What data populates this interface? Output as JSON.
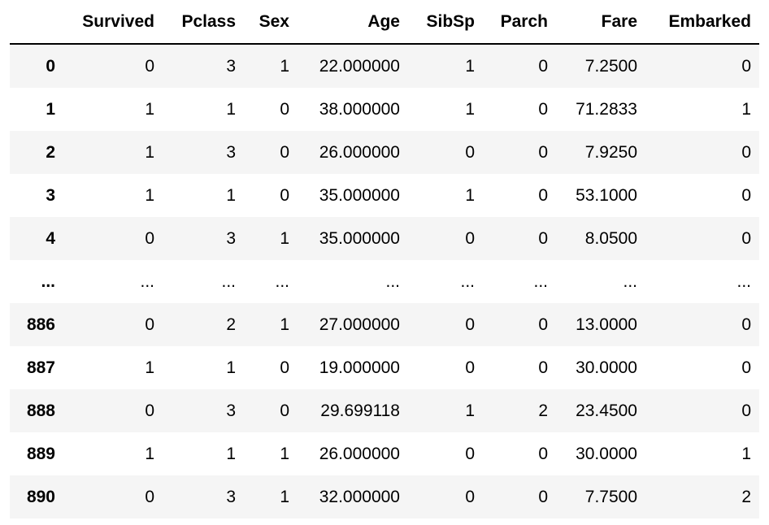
{
  "table": {
    "columns": [
      "",
      "Survived",
      "Pclass",
      "Sex",
      "Age",
      "SibSp",
      "Parch",
      "Fare",
      "Embarked"
    ],
    "rows": [
      {
        "index": "0",
        "cells": [
          "0",
          "3",
          "1",
          "22.000000",
          "1",
          "0",
          "7.2500",
          "0"
        ]
      },
      {
        "index": "1",
        "cells": [
          "1",
          "1",
          "0",
          "38.000000",
          "1",
          "0",
          "71.2833",
          "1"
        ]
      },
      {
        "index": "2",
        "cells": [
          "1",
          "3",
          "0",
          "26.000000",
          "0",
          "0",
          "7.9250",
          "0"
        ]
      },
      {
        "index": "3",
        "cells": [
          "1",
          "1",
          "0",
          "35.000000",
          "1",
          "0",
          "53.1000",
          "0"
        ]
      },
      {
        "index": "4",
        "cells": [
          "0",
          "3",
          "1",
          "35.000000",
          "0",
          "0",
          "8.0500",
          "0"
        ]
      },
      {
        "index": "...",
        "cells": [
          "...",
          "...",
          "...",
          "...",
          "...",
          "...",
          "...",
          "..."
        ]
      },
      {
        "index": "886",
        "cells": [
          "0",
          "2",
          "1",
          "27.000000",
          "0",
          "0",
          "13.0000",
          "0"
        ]
      },
      {
        "index": "887",
        "cells": [
          "1",
          "1",
          "0",
          "19.000000",
          "0",
          "0",
          "30.0000",
          "0"
        ]
      },
      {
        "index": "888",
        "cells": [
          "0",
          "3",
          "0",
          "29.699118",
          "1",
          "2",
          "23.4500",
          "0"
        ]
      },
      {
        "index": "889",
        "cells": [
          "1",
          "1",
          "1",
          "26.000000",
          "0",
          "0",
          "30.0000",
          "1"
        ]
      },
      {
        "index": "890",
        "cells": [
          "0",
          "3",
          "1",
          "32.000000",
          "0",
          "0",
          "7.7500",
          "2"
        ]
      }
    ]
  },
  "colors": {
    "stripe": "#f5f5f5",
    "header_rule": "#000000",
    "text": "#000000"
  }
}
